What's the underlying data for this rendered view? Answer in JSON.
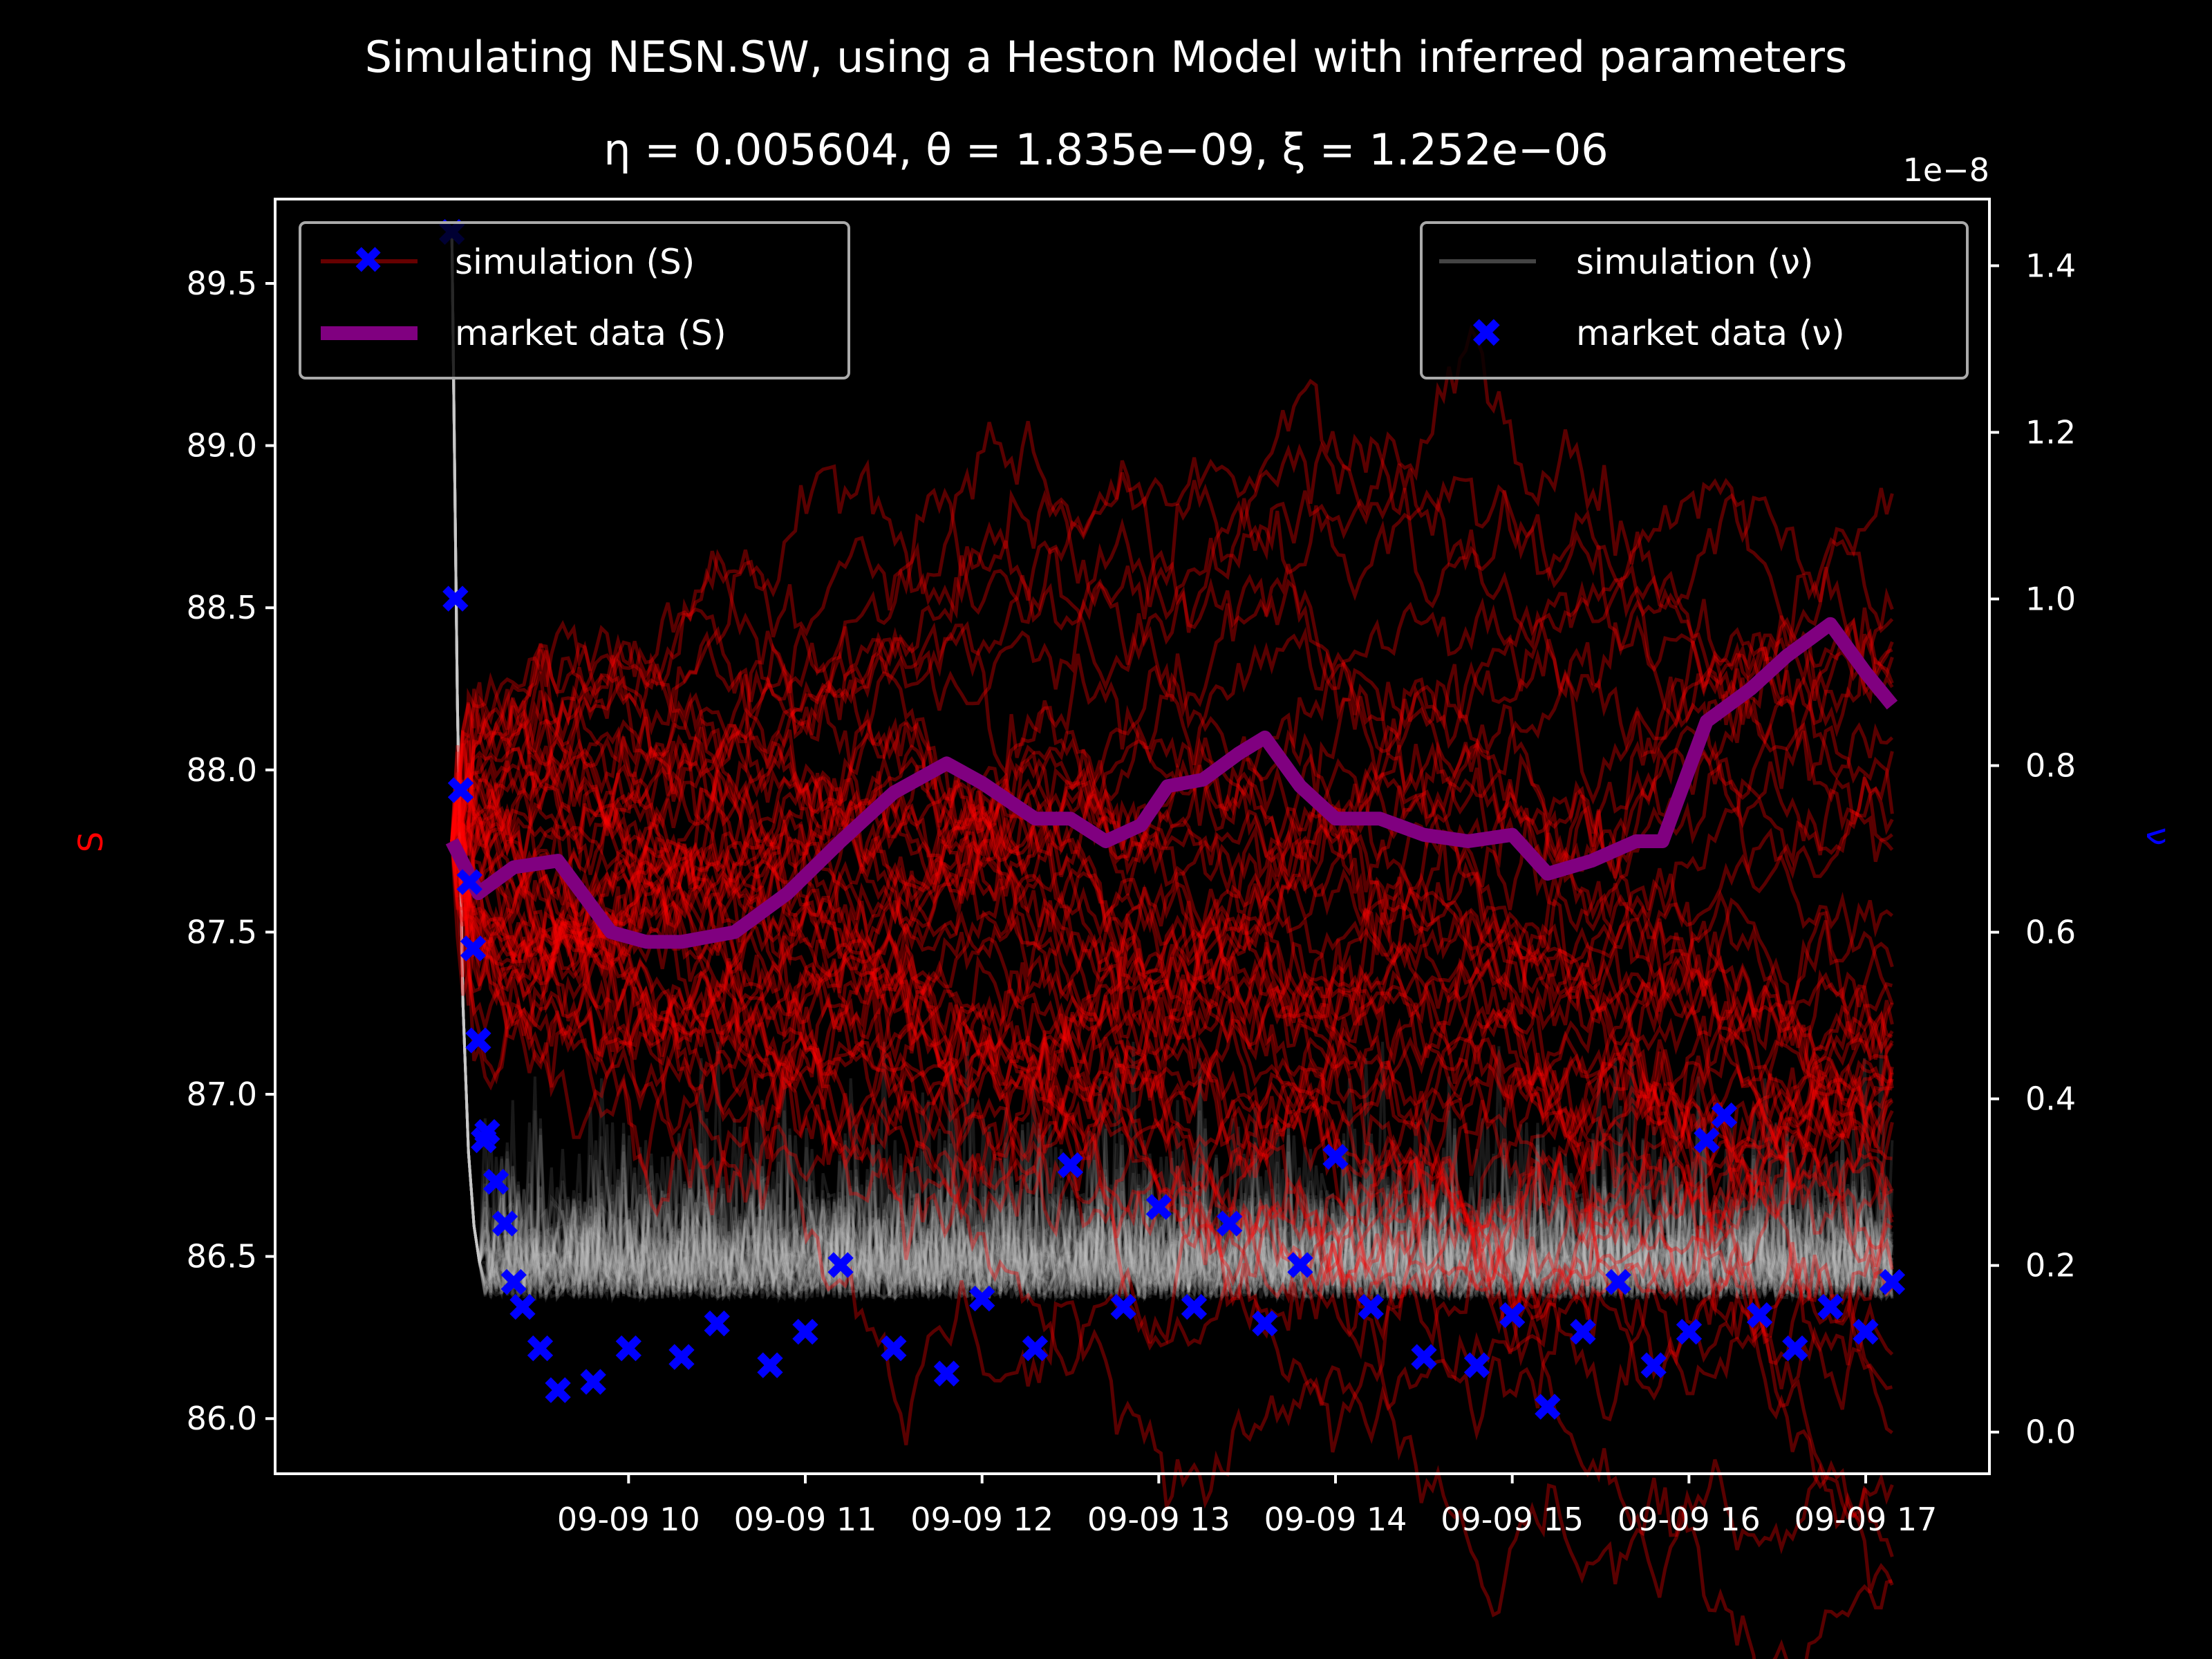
{
  "chart_data": {
    "type": "line",
    "title": "Simulating NESN.SW, using a Heston Model with inferred parameters",
    "subtitle": "η = 0.005604, θ = 1.835e−09, ξ = 1.252e−06",
    "x_tick_labels": [
      "09-09 10",
      "09-09 11",
      "09-09 12",
      "09-09 13",
      "09-09 14",
      "09-09 15",
      "09-09 16",
      "09-09 17"
    ],
    "x_hours": [
      10,
      11,
      12,
      13,
      14,
      15,
      16,
      17
    ],
    "xlim": [
      8.0,
      17.7
    ],
    "left_axis": {
      "label": "S",
      "color": "#ff0000",
      "ylim": [
        85.83,
        89.76
      ],
      "ticks": [
        86.0,
        86.5,
        87.0,
        87.5,
        88.0,
        88.5,
        89.0,
        89.5
      ],
      "tick_labels": [
        "86.0",
        "86.5",
        "87.0",
        "87.5",
        "88.0",
        "88.5",
        "89.0",
        "89.5"
      ]
    },
    "right_axis": {
      "label": "ν",
      "color": "#0000ff",
      "scale_label": "1e−8",
      "ylim": [
        -0.05,
        1.48
      ],
      "ticks": [
        0.0,
        0.2,
        0.4,
        0.6,
        0.8,
        1.0,
        1.2,
        1.4
      ],
      "tick_labels": [
        "0.0",
        "0.2",
        "0.4",
        "0.6",
        "0.8",
        "1.0",
        "1.2",
        "1.4"
      ]
    },
    "legend_left": {
      "placement": "upper-left",
      "entries": [
        "simulation (S)",
        "market data (S)"
      ]
    },
    "legend_right": {
      "placement": "upper-right",
      "entries": [
        "simulation (ν)",
        "market data (ν)"
      ]
    },
    "series": [
      {
        "name": "market data (S)",
        "axis": "left",
        "color": "#800080",
        "x": [
          9.0,
          9.15,
          9.35,
          9.6,
          9.9,
          10.1,
          10.3,
          10.6,
          10.9,
          11.2,
          11.5,
          11.8,
          12.0,
          12.3,
          12.5,
          12.7,
          12.9,
          13.05,
          13.25,
          13.45,
          13.6,
          13.8,
          14.0,
          14.25,
          14.5,
          14.75,
          15.0,
          15.2,
          15.45,
          15.7,
          15.85,
          16.1,
          16.35,
          16.55,
          16.8,
          17.0,
          17.15
        ],
        "y": [
          87.78,
          87.62,
          87.7,
          87.72,
          87.5,
          87.47,
          87.47,
          87.5,
          87.62,
          87.78,
          87.93,
          88.02,
          87.96,
          87.85,
          87.85,
          87.78,
          87.83,
          87.95,
          87.97,
          88.05,
          88.1,
          87.95,
          87.85,
          87.85,
          87.8,
          87.78,
          87.8,
          87.68,
          87.72,
          87.78,
          87.78,
          88.15,
          88.25,
          88.35,
          88.45,
          88.3,
          88.2
        ]
      },
      {
        "name": "market data (ν)",
        "axis": "right",
        "color": "#0000ff",
        "x": [
          9.0,
          9.02,
          9.05,
          9.1,
          9.12,
          9.15,
          9.18,
          9.2,
          9.25,
          9.3,
          9.35,
          9.4,
          9.5,
          9.6,
          9.8,
          10.0,
          10.3,
          10.5,
          10.8,
          11.0,
          11.2,
          11.5,
          11.8,
          12.0,
          12.3,
          12.5,
          12.8,
          13.0,
          13.2,
          13.4,
          13.6,
          13.8,
          14.0,
          14.2,
          14.5,
          14.8,
          15.0,
          15.2,
          15.4,
          15.6,
          15.8,
          16.0,
          16.1,
          16.2,
          16.4,
          16.6,
          16.8,
          17.0,
          17.15
        ],
        "y": [
          1.44,
          1.0,
          0.77,
          0.66,
          0.58,
          0.47,
          0.35,
          0.36,
          0.3,
          0.25,
          0.18,
          0.15,
          0.1,
          0.05,
          0.06,
          0.1,
          0.09,
          0.13,
          0.08,
          0.12,
          0.2,
          0.1,
          0.07,
          0.16,
          0.1,
          0.32,
          0.15,
          0.27,
          0.15,
          0.25,
          0.13,
          0.2,
          0.33,
          0.15,
          0.09,
          0.08,
          0.14,
          0.03,
          0.12,
          0.18,
          0.08,
          0.12,
          0.35,
          0.38,
          0.14,
          0.1,
          0.15,
          0.12,
          0.18
        ]
      }
    ]
  }
}
